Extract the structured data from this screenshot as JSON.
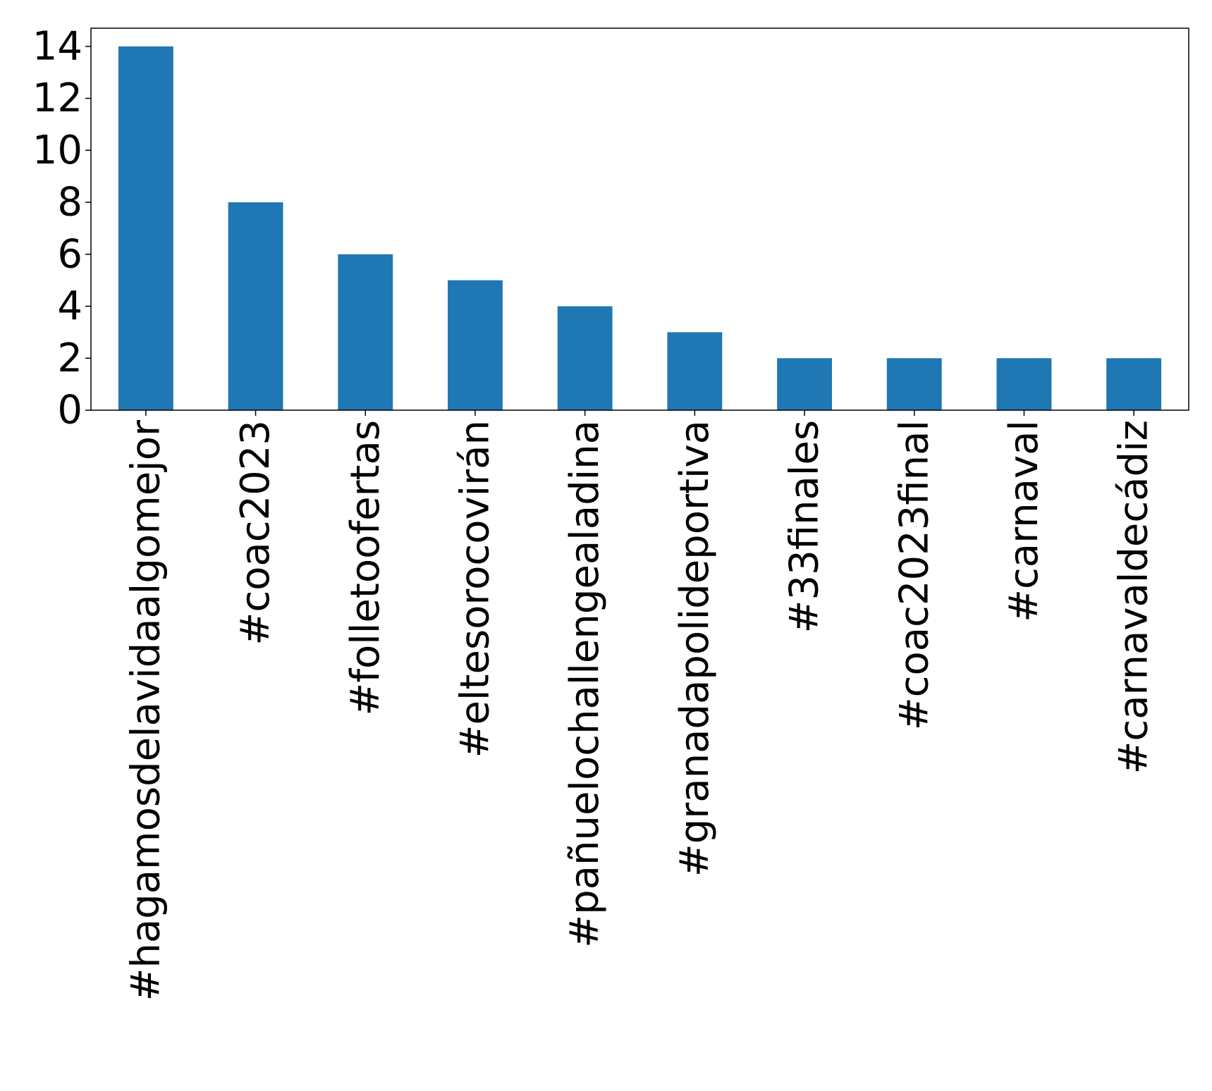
{
  "chart_data": {
    "type": "bar",
    "categories": [
      "#hagamosdelavidaalgomejor",
      "#coac2023",
      "#folletoofertas",
      "#eltesorocovirán",
      "#pañuelochallengealadina",
      "#granadapolideportiva",
      "#33finales",
      "#coac2023final",
      "#carnaval",
      "#carnavaldecádiz"
    ],
    "values": [
      14,
      8,
      6,
      5,
      4,
      3,
      2,
      2,
      2,
      2
    ],
    "ylim": [
      0,
      14.7
    ],
    "yticks": [
      0,
      2,
      4,
      6,
      8,
      10,
      12,
      14
    ],
    "bar_color": "#1f77b4",
    "grid": false,
    "legend": false
  }
}
